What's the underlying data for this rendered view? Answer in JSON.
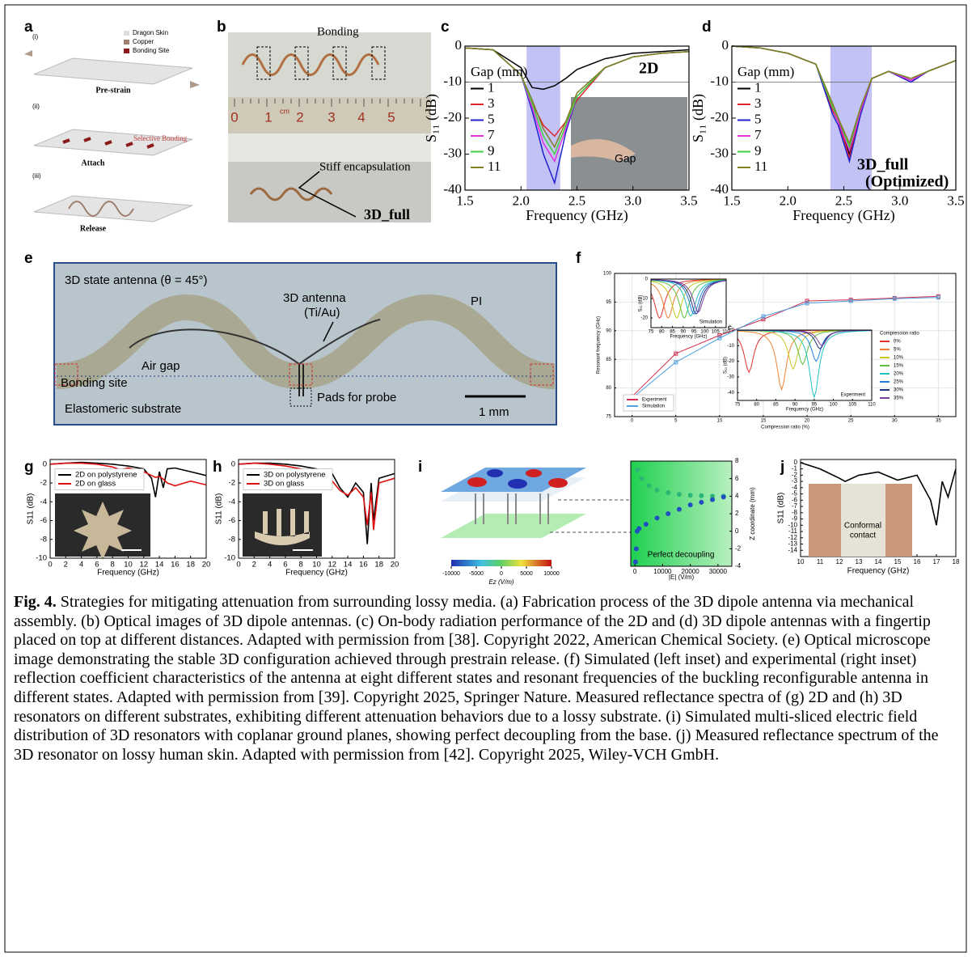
{
  "panels": {
    "a": {
      "label": "a",
      "steps": [
        "(i)",
        "(ii)",
        "(iii)"
      ],
      "legend": [
        "Dragon Skin",
        "Copper",
        "Bonding Site"
      ],
      "stages": [
        "Pre-strain",
        "Attach",
        "Release"
      ],
      "annotation": "Selective Bonding"
    },
    "b": {
      "label": "b",
      "annotations": [
        "Bonding",
        "Stiff encapsulation",
        "3D_full"
      ],
      "ruler": [
        "0",
        "1",
        "2",
        "3",
        "4",
        "5"
      ],
      "ruler_unit": "cm"
    },
    "c": {
      "label": "c",
      "inset": "Gap",
      "chart_data": {
        "type": "line",
        "tag": "2D",
        "xlabel": "Frequency (GHz)",
        "ylabel": "S₁₁ (dB)",
        "xlim": [
          1.5,
          3.5
        ],
        "ylim": [
          -40,
          0
        ],
        "xticks": [
          1.5,
          {
            "value": 2,
            "label": "2.0"
          },
          2.5,
          {
            "value": 3,
            "label": "3.0"
          },
          3.5
        ],
        "yticks": [
          0,
          -10,
          -20,
          -30,
          -40
        ],
        "highlight": [
          2.05,
          2.35
        ],
        "highlight_color": "#9999ee",
        "hline": -10,
        "legend_title": "Gap (mm)",
        "x": [
          1.5,
          1.75,
          2.0,
          2.1,
          2.2,
          2.3,
          2.4,
          2.5,
          2.75,
          3.0,
          3.25,
          3.5
        ],
        "series": [
          {
            "name": "1",
            "color": "#000000",
            "values": [
              -0.5,
              -1,
              -6,
              -11.5,
              -12,
              -11,
              -9,
              -6.5,
              -3.5,
              -2,
              -1.5,
              -1
            ]
          },
          {
            "name": "3",
            "color": "#e0242c",
            "values": [
              -0.5,
              -1,
              -8,
              -16,
              -22,
              -25,
              -21,
              -15,
              -6,
              -3,
              -2,
              -1.5
            ]
          },
          {
            "name": "5",
            "color": "#2020d0",
            "values": [
              -0.5,
              -1,
              -8,
              -18,
              -30,
              -38,
              -24,
              -14,
              -6,
              -3,
              -2,
              -1.5
            ]
          },
          {
            "name": "7",
            "color": "#e030e0",
            "values": [
              -0.5,
              -1,
              -8,
              -17,
              -27,
              -32,
              -23,
              -14,
              -6,
              -3,
              -2,
              -1.5
            ]
          },
          {
            "name": "9",
            "color": "#40d040",
            "values": [
              -0.5,
              -1,
              -8,
              -16,
              -25,
              -30,
              -22,
              -14,
              -6,
              -3,
              -2,
              -1.5
            ]
          },
          {
            "name": "11",
            "color": "#808020",
            "values": [
              -0.5,
              -1,
              -8,
              -15,
              -23,
              -28,
              -21,
              -13,
              -6,
              -3,
              -2,
              -1.5
            ]
          }
        ]
      }
    },
    "d": {
      "label": "d",
      "chart_data": {
        "type": "line",
        "tag": "3D_full",
        "tag2": "(Optimized)",
        "xlabel": "Frequency (GHz)",
        "ylabel": "S₁₁ (dB)",
        "xlim": [
          1.5,
          3.5
        ],
        "ylim": [
          -40,
          0
        ],
        "xticks": [
          1.5,
          {
            "value": 2,
            "label": "2.0"
          },
          2.5,
          {
            "value": 3,
            "label": "3.0"
          },
          3.5
        ],
        "yticks": [
          0,
          -10,
          -20,
          -30,
          -40
        ],
        "highlight": [
          2.38,
          2.75
        ],
        "highlight_color": "#9999ee",
        "hline": -10,
        "legend_title": "Gap (mm)",
        "x": [
          1.5,
          1.75,
          2.0,
          2.25,
          2.4,
          2.45,
          2.55,
          2.65,
          2.75,
          2.9,
          3.1,
          3.25,
          3.5
        ],
        "series": [
          {
            "name": "1",
            "color": "#000000",
            "values": [
              0,
              -0.5,
              -2,
              -5,
              -17,
              -20,
              -30,
              -18,
              -9,
              -7,
              -9.5,
              -7,
              -4
            ]
          },
          {
            "name": "3",
            "color": "#e0242c",
            "values": [
              0,
              -0.5,
              -2,
              -5,
              -18,
              -21,
              -31,
              -18,
              -9,
              -7,
              -9.5,
              -7,
              -4
            ]
          },
          {
            "name": "5",
            "color": "#2020d0",
            "values": [
              0,
              -0.5,
              -2,
              -5,
              -19,
              -22,
              -32,
              -19,
              -9,
              -7,
              -10,
              -7,
              -4
            ]
          },
          {
            "name": "7",
            "color": "#e030e0",
            "values": [
              0,
              -0.5,
              -2,
              -5,
              -17,
              -21,
              -29,
              -18,
              -9,
              -7,
              -9.5,
              -7,
              -4
            ]
          },
          {
            "name": "9",
            "color": "#40d040",
            "values": [
              0,
              -0.5,
              -2,
              -5,
              -17,
              -20,
              -28,
              -17,
              -9,
              -7,
              -9,
              -7,
              -4
            ]
          },
          {
            "name": "11",
            "color": "#808020",
            "values": [
              0,
              -0.5,
              -2,
              -5,
              -16,
              -20,
              -27,
              -17,
              -9,
              -7,
              -9,
              -7,
              -4
            ]
          }
        ]
      }
    },
    "e": {
      "label": "e",
      "texts": [
        "3D state antenna (θ = 45°)",
        "3D antenna",
        "(Ti/Au)",
        "PI",
        "Air gap",
        "Bonding site",
        "Pads for probe",
        "Elastomeric substrate",
        "1 mm"
      ]
    },
    "f": {
      "label": "f",
      "chart_data": {
        "type": "line",
        "markers": true,
        "grid": true,
        "xlabel": "Compression ratio (%)",
        "ylabel": "Resonant frequency (GHz)",
        "xlim": [
          -2,
          37
        ],
        "ylim": [
          75,
          100
        ],
        "xticks": [
          0,
          5,
          10,
          15,
          20,
          25,
          30,
          35
        ],
        "yticks": [
          75,
          80,
          85,
          90,
          95,
          100
        ],
        "x": [
          0,
          5,
          10,
          15,
          20,
          25,
          30,
          35
        ],
        "series": [
          {
            "name": "Experiment",
            "color": "#d03050",
            "values": [
              78.5,
              86,
              89.2,
              92,
              95.2,
              95.4,
              95.7,
              96
            ]
          },
          {
            "name": "Simulation",
            "color": "#50a0e0",
            "values": [
              78.2,
              84.5,
              88.7,
              92.5,
              94.8,
              95.2,
              95.6,
              95.8
            ]
          }
        ]
      },
      "inset_left": {
        "type": "dips",
        "text": "Simulation",
        "xlabel": "Frequency (GHz)",
        "ylabel": "S₁₁ (dB)",
        "xlim": [
          75,
          110
        ],
        "ylim": [
          -25,
          0
        ],
        "xticks": [
          75,
          80,
          85,
          90,
          95,
          100,
          105,
          110
        ],
        "yticks": [
          -20,
          -10,
          0
        ],
        "series": [
          {
            "color": "#e03030",
            "center": 79,
            "depth": 20
          },
          {
            "color": "#f08030",
            "center": 83,
            "depth": 20
          },
          {
            "color": "#c8c820",
            "center": 87,
            "depth": 20
          },
          {
            "color": "#60c040",
            "center": 90.5,
            "depth": 20
          },
          {
            "color": "#20c0c0",
            "center": 93.5,
            "depth": 19
          },
          {
            "color": "#2080e0",
            "center": 95,
            "depth": 18
          },
          {
            "color": "#203080",
            "center": 96,
            "depth": 18
          },
          {
            "color": "#8040a0",
            "center": 97,
            "depth": 17
          }
        ]
      },
      "inset_right": {
        "type": "dips",
        "sublabel": "c",
        "text": "Experiment",
        "xlabel": "Frequency (GHz)",
        "ylabel": "S₁₁ (dB)",
        "legend_title": "Compression ratio",
        "xlim": [
          75,
          110
        ],
        "ylim": [
          -45,
          0
        ],
        "xticks": [
          75,
          80,
          85,
          90,
          95,
          100,
          105,
          110
        ],
        "yticks": [
          0,
          -10,
          -20,
          -30,
          -40
        ],
        "series": [
          {
            "name": "0%",
            "color": "#e03030",
            "center": 78,
            "depth": 27
          },
          {
            "name": "5%",
            "color": "#f08030",
            "center": 86.5,
            "depth": 38
          },
          {
            "name": "10%",
            "color": "#c8c820",
            "center": 89.5,
            "depth": 25
          },
          {
            "name": "15%",
            "color": "#60c040",
            "center": 92,
            "depth": 22
          },
          {
            "name": "20%",
            "color": "#20c0c0",
            "center": 95,
            "depth": 43
          },
          {
            "name": "25%",
            "color": "#2080e0",
            "center": 95.5,
            "depth": 20
          },
          {
            "name": "30%",
            "color": "#203080",
            "center": 96.5,
            "depth": 12
          },
          {
            "name": "35%",
            "color": "#8040a0",
            "center": 97,
            "depth": 10
          }
        ]
      }
    },
    "g": {
      "label": "g",
      "chart_data": {
        "type": "line",
        "xlabel": "Frequency (GHz)",
        "ylabel": "S11 (dB)",
        "xlim": [
          0,
          20
        ],
        "ylim": [
          -10,
          0.5
        ],
        "xticks": [
          0,
          2,
          4,
          6,
          8,
          10,
          12,
          14,
          16,
          18,
          20
        ],
        "yticks": [
          0,
          -2,
          -4,
          -6,
          -8,
          -10
        ],
        "x": [
          0,
          2,
          4,
          6,
          8,
          9,
          10,
          12,
          13,
          13.5,
          14,
          14.5,
          15,
          16,
          18,
          20
        ],
        "series": [
          {
            "name": "2D on polystyrene",
            "color": "#000000",
            "values": [
              0,
              0.1,
              0.2,
              0.1,
              0,
              -0.1,
              -0.2,
              -0.5,
              -1.5,
              -3.5,
              -0.8,
              -2.5,
              -0.5,
              -0.4,
              -0.8,
              -1.2
            ]
          },
          {
            "name": "2D on glass",
            "color": "#e01010",
            "values": [
              0,
              0.1,
              0.1,
              0,
              -0.3,
              -0.6,
              -0.4,
              -0.8,
              -1.2,
              -1.4,
              -1.3,
              -1.6,
              -2,
              -2.3,
              -1.8,
              -2.2
            ]
          }
        ]
      }
    },
    "h": {
      "label": "h",
      "chart_data": {
        "type": "line",
        "xlabel": "Frequency (GHz)",
        "ylabel": "S11 (dB)",
        "xlim": [
          0,
          20
        ],
        "ylim": [
          -10,
          0.5
        ],
        "xticks": [
          0,
          2,
          4,
          6,
          8,
          10,
          12,
          14,
          16,
          18,
          20
        ],
        "yticks": [
          0,
          -2,
          -4,
          -6,
          -8,
          -10
        ],
        "x": [
          0,
          2,
          4,
          6,
          8,
          10,
          12,
          13,
          14,
          15,
          16,
          16.5,
          17,
          17.3,
          18,
          20
        ],
        "series": [
          {
            "name": "3D on polystyrene",
            "color": "#000000",
            "values": [
              0,
              0.1,
              0.1,
              0,
              -0.2,
              -0.5,
              -1,
              -2.5,
              -3.5,
              -2,
              -3,
              -8.5,
              -2,
              -6,
              -1.5,
              -1
            ]
          },
          {
            "name": "3D on glass",
            "color": "#e01010",
            "values": [
              0,
              0.1,
              0,
              -0.2,
              -0.5,
              -1,
              -1.8,
              -2.8,
              -3.3,
              -2.5,
              -3.5,
              -6.5,
              -3,
              -7,
              -2,
              -1.5
            ]
          }
        ]
      }
    },
    "i": {
      "label": "i",
      "colorbar": {
        "label": "Ez (V/m)",
        "lim": [
          -10000,
          10000
        ],
        "ticks": [
          -10000,
          -5000,
          0,
          5000,
          10000
        ]
      },
      "chart_data": {
        "type": "scatter",
        "text": "Perfect decoupling",
        "xlabel": "|E| (V/m)",
        "ylabel": "Z coordinate (mm)",
        "xlim": [
          -1500,
          35000
        ],
        "y2lim": [
          -4,
          8
        ],
        "xticks": [
          0,
          10000,
          20000,
          30000
        ],
        "y2ticks": [
          8,
          6,
          4,
          2,
          0,
          -2,
          -4
        ],
        "series": [
          {
            "color": "#2bb673",
            "x": [
              1000,
              2500,
              5000,
              8000,
              12000,
              16000,
              20000,
              24000,
              28000,
              32000
            ],
            "values": [
              7,
              6,
              5.2,
              4.7,
              4.4,
              4.2,
              4.1,
              4.05,
              4,
              4
            ]
          },
          {
            "color": "#2050c0",
            "x": [
              200,
              500,
              800,
              1500,
              4000,
              8000,
              12000,
              16000,
              20000,
              24000,
              28000,
              32000
            ],
            "values": [
              -3.5,
              -2,
              0,
              0.3,
              0.8,
              1.5,
              2,
              2.5,
              3,
              3.3,
              3.6,
              3.9
            ]
          }
        ]
      }
    },
    "j": {
      "label": "j",
      "inset": [
        "Conformal",
        "contact"
      ],
      "chart_data": {
        "type": "line",
        "xlabel": "Frequency (GHz)",
        "ylabel": "S11 (dB)",
        "xlim": [
          10,
          18
        ],
        "ylim": [
          -15,
          0.5
        ],
        "xticks": [
          10,
          11,
          12,
          13,
          14,
          15,
          16,
          17,
          18
        ],
        "yticks": [
          0,
          -1,
          -2,
          -3,
          -4,
          -5,
          -6,
          -7,
          -8,
          -9,
          -10,
          -11,
          -12,
          -13,
          -14
        ],
        "x": [
          10,
          11,
          12,
          12.3,
          13,
          14,
          15,
          16,
          16.7,
          17,
          17.3,
          17.6,
          18
        ],
        "series": [
          {
            "color": "#000000",
            "values": [
              0,
              -1,
              -2.5,
              -3,
              -2,
              -1.5,
              -2.8,
              -2,
              -6,
              -10,
              -3,
              -5.5,
              -1
            ]
          }
        ]
      }
    }
  },
  "caption": {
    "label": "Fig. 4.",
    "text": "Strategies for mitigating attenuation from surrounding lossy media. (a) Fabrication process of the 3D dipole antenna via mechanical assembly. (b) Optical images of 3D dipole antennas. (c) On-body radiation performance of the 2D and (d) 3D dipole antennas with a fingertip placed on top at different distances. Adapted with permission from [38]. Copyright 2022, American Chemical Society. (e) Optical microscope image demonstrating the stable 3D configuration achieved through prestrain release. (f) Simulated (left inset) and experimental (right inset) reflection coefficient characteristics of the antenna at eight different states and resonant frequencies of the buckling reconfigurable antenna in different states. Adapted with permission from [39]. Copyright 2025, Springer Nature. Measured reflectance spectra of (g) 2D and (h) 3D resonators on different substrates, exhibiting different attenuation behaviors due to a lossy substrate. (i) Simulated multi-sliced electric field distribution of 3D resonators with coplanar ground planes, showing perfect decoupling from the base. (j) Measured reflectance spectrum of the 3D resonator on lossy human skin. Adapted with permission from [42]. Copyright 2025, Wiley-VCH GmbH."
  }
}
